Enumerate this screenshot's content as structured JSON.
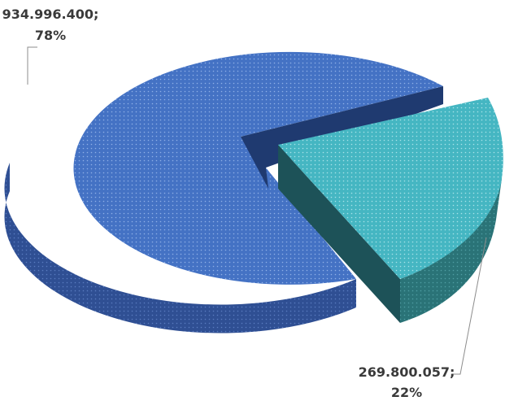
{
  "chart_data": {
    "type": "pie",
    "style": "3d-exploded",
    "values": [
      934996400,
      269800057
    ],
    "labels": [
      {
        "value": "934.996.400;",
        "percent": "78%"
      },
      {
        "value": "269.800.057;",
        "percent": "22%"
      }
    ],
    "colors": {
      "slice_0_top": "#4472c4",
      "slice_0_side": "#2f4f93",
      "slice_0_wall": "#1f3a70",
      "slice_1_top": "#45b6c2",
      "slice_1_side": "#2a7377",
      "slice_1_wall": "#1d5258",
      "leader_line": "#8c8c8c"
    }
  }
}
